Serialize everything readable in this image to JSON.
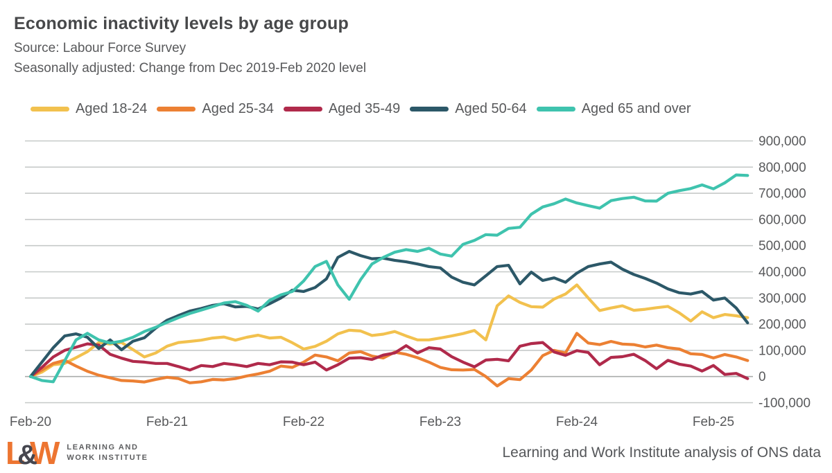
{
  "header": {
    "title": "Economic inactivity levels by age group",
    "source": "Source: Labour Force Survey",
    "subtitle": "Seasonally adjusted: Change from Dec 2019-Feb 2020 level"
  },
  "footer": {
    "logo": {
      "l": "L",
      "amp": "&",
      "w": "W",
      "caption_line1": "LEARNING AND",
      "caption_line2": "WORK INSTITUTE",
      "orange": "#ed7531",
      "dark": "#45464f"
    },
    "attribution": "Learning and Work Institute analysis of ONS data"
  },
  "chart_data": {
    "type": "line",
    "title": "Economic inactivity levels by age group",
    "xlabel": "",
    "ylabel": "",
    "ylim": [
      -100000,
      900000
    ],
    "ytick_step": 100000,
    "y_tick_labels": [
      "-100,000",
      "0",
      "100,000",
      "200,000",
      "300,000",
      "400,000",
      "500,000",
      "600,000",
      "700,000",
      "800,000",
      "900,000"
    ],
    "x_tick_labels": [
      "Feb-20",
      "Feb-21",
      "Feb-22",
      "Feb-23",
      "Feb-24",
      "Feb-25"
    ],
    "grid": true,
    "legend_position": "top",
    "grid_color": "#c6c9c8",
    "zero_line_color": "#a9acab",
    "x": [
      "Feb-20",
      "Mar-20",
      "Apr-20",
      "May-20",
      "Jun-20",
      "Jul-20",
      "Aug-20",
      "Sep-20",
      "Oct-20",
      "Nov-20",
      "Dec-20",
      "Jan-21",
      "Feb-21",
      "Mar-21",
      "Apr-21",
      "May-21",
      "Jun-21",
      "Jul-21",
      "Aug-21",
      "Sep-21",
      "Oct-21",
      "Nov-21",
      "Dec-21",
      "Jan-22",
      "Feb-22",
      "Mar-22",
      "Apr-22",
      "May-22",
      "Jun-22",
      "Jul-22",
      "Aug-22",
      "Sep-22",
      "Oct-22",
      "Nov-22",
      "Dec-22",
      "Jan-23",
      "Feb-23",
      "Mar-23",
      "Apr-23",
      "May-23",
      "Jun-23",
      "Jul-23",
      "Aug-23",
      "Sep-23",
      "Oct-23",
      "Nov-23",
      "Dec-23",
      "Jan-24",
      "Feb-24",
      "Mar-24",
      "Apr-24",
      "May-24",
      "Jun-24",
      "Jul-24",
      "Aug-24",
      "Sep-24",
      "Oct-24",
      "Nov-24",
      "Dec-24",
      "Jan-25",
      "Feb-25",
      "Mar-25",
      "Apr-25",
      "May-25"
    ],
    "series": [
      {
        "id": "aged-18-24",
        "name": "Aged 18-24",
        "color": "#f2c14e",
        "values": [
          0,
          17000,
          45000,
          50000,
          72000,
          95000,
          130000,
          124000,
          130000,
          103000,
          75000,
          90000,
          116000,
          130000,
          134000,
          139000,
          147000,
          151000,
          139000,
          150000,
          158000,
          147000,
          150000,
          129000,
          105000,
          115000,
          135000,
          163000,
          177000,
          174000,
          157000,
          162000,
          172000,
          155000,
          140000,
          140000,
          147000,
          155000,
          164000,
          176000,
          140000,
          270000,
          308000,
          283000,
          267000,
          265000,
          296000,
          315000,
          350000,
          300000,
          252000,
          262000,
          270000,
          253000,
          257000,
          263000,
          268000,
          243000,
          212000,
          247000,
          225000,
          237000,
          232000,
          225000
        ]
      },
      {
        "id": "aged-25-34",
        "name": "Aged 25-34",
        "color": "#ec8033",
        "values": [
          0,
          25000,
          50000,
          62000,
          40000,
          20000,
          5000,
          -5000,
          -15000,
          -17000,
          -21000,
          -11000,
          -3000,
          -8000,
          -24000,
          -20000,
          -11000,
          -13000,
          -8000,
          2000,
          10000,
          20000,
          40000,
          35000,
          55000,
          82000,
          75000,
          60000,
          90000,
          95000,
          78000,
          71000,
          93000,
          85000,
          72000,
          55000,
          35000,
          26000,
          25000,
          27000,
          0,
          -36000,
          -8000,
          -12000,
          25000,
          80000,
          100000,
          90000,
          165000,
          128000,
          122000,
          134000,
          124000,
          122000,
          113000,
          120000,
          110000,
          105000,
          87000,
          84000,
          71000,
          84000,
          75000,
          61000
        ]
      },
      {
        "id": "aged-35-49",
        "name": "Aged 35-49",
        "color": "#b02a4b",
        "values": [
          0,
          35000,
          75000,
          100000,
          112000,
          125000,
          120000,
          85000,
          70000,
          58000,
          55000,
          50000,
          50000,
          38000,
          25000,
          42000,
          38000,
          50000,
          45000,
          38000,
          50000,
          45000,
          56000,
          55000,
          45000,
          55000,
          25000,
          45000,
          70000,
          72000,
          65000,
          82000,
          90000,
          118000,
          90000,
          110000,
          105000,
          76000,
          55000,
          37000,
          63000,
          66000,
          60000,
          116000,
          126000,
          130000,
          94000,
          81000,
          99000,
          92000,
          45000,
          73000,
          76000,
          85000,
          61000,
          30000,
          62000,
          47000,
          40000,
          21000,
          42000,
          8000,
          12000,
          -8000
        ]
      },
      {
        "id": "aged-50-64",
        "name": "Aged 50-64",
        "color": "#2c5868",
        "values": [
          0,
          55000,
          110000,
          155000,
          163000,
          150000,
          107000,
          140000,
          102000,
          135000,
          148000,
          185000,
          215000,
          233000,
          250000,
          260000,
          272000,
          278000,
          266000,
          268000,
          258000,
          278000,
          300000,
          330000,
          325000,
          340000,
          373000,
          455000,
          478000,
          462000,
          450000,
          452000,
          444000,
          438000,
          430000,
          420000,
          415000,
          380000,
          360000,
          350000,
          385000,
          420000,
          425000,
          354000,
          399000,
          367000,
          377000,
          360000,
          395000,
          420000,
          430000,
          437000,
          410000,
          390000,
          375000,
          357000,
          335000,
          320000,
          315000,
          325000,
          292000,
          300000,
          262000,
          205000
        ]
      },
      {
        "id": "aged-65-and-over",
        "name": "Aged 65 and over",
        "color": "#3fc3ae",
        "values": [
          0,
          -15000,
          -20000,
          60000,
          140000,
          165000,
          140000,
          128000,
          135000,
          150000,
          172000,
          188000,
          207000,
          225000,
          241000,
          254000,
          267000,
          281000,
          286000,
          272000,
          250000,
          291000,
          312000,
          325000,
          365000,
          420000,
          440000,
          350000,
          295000,
          370000,
          430000,
          455000,
          475000,
          485000,
          478000,
          490000,
          468000,
          460000,
          505000,
          520000,
          542000,
          540000,
          566000,
          570000,
          620000,
          648000,
          660000,
          678000,
          663000,
          653000,
          643000,
          672000,
          680000,
          685000,
          671000,
          670000,
          700000,
          710000,
          718000,
          732000,
          717000,
          740000,
          770000,
          768000
        ]
      }
    ]
  }
}
